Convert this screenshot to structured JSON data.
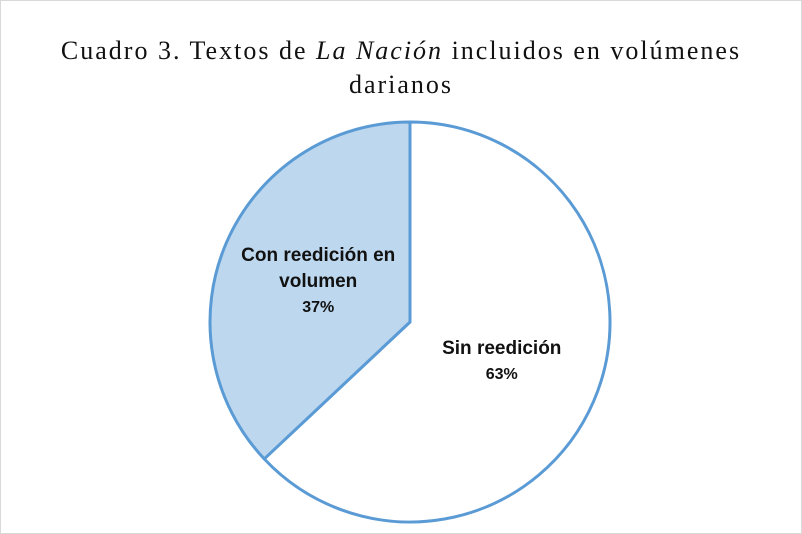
{
  "chart_data": {
    "type": "pie",
    "title": [
      {
        "text": "Cuadro 3. Textos de "
      },
      {
        "text": "La Nación",
        "italic": true
      },
      {
        "text": " incluidos en volúmenes darianos"
      }
    ],
    "categories": [
      "Sin reedición",
      "Con reedición en volumen"
    ],
    "values": [
      63,
      37
    ],
    "value_labels": [
      "63%",
      "37%"
    ],
    "colors": [
      "#ffffff",
      "#bdd7ee"
    ],
    "edge_color": "#5b9bd5"
  }
}
